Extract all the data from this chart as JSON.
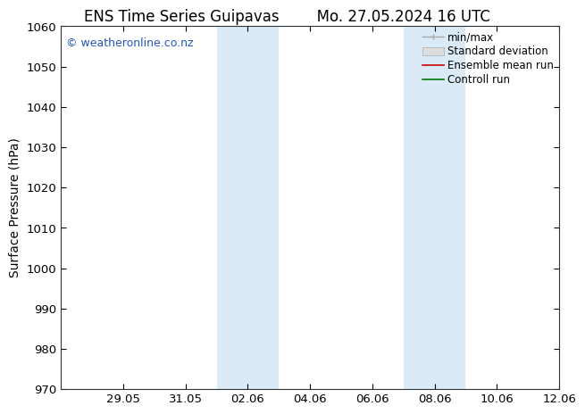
{
  "title_left": "ENS Time Series Guipavas",
  "title_right": "Mo. 27.05.2024 16 UTC",
  "ylabel": "Surface Pressure (hPa)",
  "ylim": [
    970,
    1060
  ],
  "yticks": [
    970,
    980,
    990,
    1000,
    1010,
    1020,
    1030,
    1040,
    1050,
    1060
  ],
  "xtick_labels": [
    "29.05",
    "31.05",
    "02.06",
    "04.06",
    "06.06",
    "08.06",
    "10.06",
    "12.06"
  ],
  "xtick_positions": [
    2,
    4,
    6,
    8,
    10,
    12,
    14,
    16
  ],
  "band_color": "#daeaf7",
  "band1_start": 5.0,
  "band1_end": 7.0,
  "band2_start": 11.0,
  "band2_end": 13.0,
  "background_color": "#ffffff",
  "copyright_text": "© weatheronline.co.nz",
  "legend_items": [
    {
      "label": "min/max",
      "color": "#aaaaaa"
    },
    {
      "label": "Standard deviation",
      "color": "#cccccc"
    },
    {
      "label": "Ensemble mean run",
      "color": "#cc0000"
    },
    {
      "label": "Controll run",
      "color": "#007700"
    }
  ],
  "x_min": 0,
  "x_max": 16,
  "tick_label_fontsize": 9.5,
  "ylabel_fontsize": 10,
  "title_fontsize": 12,
  "copyright_fontsize": 9,
  "legend_fontsize": 8.5
}
